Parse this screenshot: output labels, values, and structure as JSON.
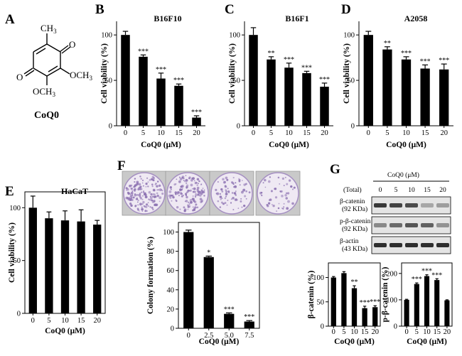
{
  "panel_labels": [
    "A",
    "B",
    "C",
    "D",
    "E",
    "F",
    "G"
  ],
  "structure": {
    "methyl": "CH",
    "methyl_sub": "3",
    "oc1": "OCH",
    "oc1_sub": "3",
    "oc2": "OCH",
    "oc2_sub": "3",
    "o_left": "O",
    "o_top": "O",
    "name": "CoQ0"
  },
  "chart_data": [
    {
      "id": "B",
      "type": "bar",
      "title": "B16F10",
      "categories": [
        "0",
        "5",
        "10",
        "15",
        "20"
      ],
      "values": [
        100,
        76,
        52,
        44,
        9
      ],
      "errors": [
        4,
        2,
        6,
        2,
        2
      ],
      "significance": [
        "",
        "***",
        "***",
        "***",
        "***"
      ],
      "ylabel": "Cell viability (%)",
      "xlabel": "CoQ0 (μM)",
      "ylim": [
        0,
        115
      ],
      "yticks": [
        "0",
        "50",
        "100"
      ]
    },
    {
      "id": "C",
      "type": "bar",
      "title": "B16F1",
      "categories": [
        "0",
        "5",
        "10",
        "15",
        "20"
      ],
      "values": [
        100,
        73,
        64,
        58,
        43
      ],
      "errors": [
        8,
        3,
        5,
        2,
        4
      ],
      "significance": [
        "",
        "**",
        "***",
        "***",
        "***"
      ],
      "ylabel": "Cell viability (%)",
      "xlabel": "CoQ0 (μM)",
      "ylim": [
        0,
        115
      ],
      "yticks": [
        "0",
        "50",
        "100"
      ]
    },
    {
      "id": "D",
      "type": "bar",
      "title": "A2058",
      "categories": [
        "0",
        "5",
        "10",
        "15",
        "20"
      ],
      "values": [
        100,
        84,
        73,
        63,
        62
      ],
      "errors": [
        4,
        3,
        3,
        4,
        6
      ],
      "significance": [
        "",
        "**",
        "***",
        "***",
        "***"
      ],
      "ylabel": "Cell viability (%)",
      "xlabel": "CoQ0 (μM)",
      "ylim": [
        0,
        115
      ],
      "yticks": [
        "0",
        "50",
        "100"
      ]
    },
    {
      "id": "E",
      "type": "bar",
      "title": "HaCaT",
      "categories": [
        "0",
        "5",
        "10",
        "15",
        "20"
      ],
      "values": [
        100,
        90,
        88,
        87,
        84
      ],
      "errors": [
        11,
        6,
        9,
        11,
        4
      ],
      "significance": [
        "",
        "",
        "",
        "",
        ""
      ],
      "ylabel": "Cell viability (%)",
      "xlabel": "CoQ0 (μM)",
      "ylim": [
        0,
        115
      ],
      "yticks": [
        "0",
        "50",
        "100"
      ]
    },
    {
      "id": "F",
      "type": "bar",
      "title": "",
      "categories": [
        "0",
        "2.5",
        "5.0",
        "7.5"
      ],
      "values": [
        100,
        74,
        15,
        7
      ],
      "errors": [
        2,
        1,
        1,
        1
      ],
      "significance": [
        "",
        "*",
        "***",
        "***"
      ],
      "ylabel": "Colony formation (%)",
      "xlabel": "CoQ0 (μM)",
      "ylim": [
        0,
        110
      ],
      "yticks": [
        "0",
        "20",
        "40",
        "60",
        "80",
        "100"
      ]
    },
    {
      "id": "G1",
      "type": "bar",
      "title": "",
      "categories": [
        "0",
        "5",
        "10",
        "15",
        "20"
      ],
      "values": [
        100,
        109,
        78,
        37,
        39
      ],
      "errors": [
        2,
        3,
        5,
        4,
        3
      ],
      "significance": [
        "",
        "",
        "**",
        "***",
        "***"
      ],
      "ylabel": "β-catenin (%)",
      "xlabel": "CoQ0 (μM)",
      "ylim": [
        0,
        130
      ],
      "yticks": [
        "0",
        "50",
        "100"
      ]
    },
    {
      "id": "G2",
      "type": "bar",
      "title": "",
      "categories": [
        "0",
        "5",
        "10",
        "15",
        "20"
      ],
      "values": [
        100,
        160,
        190,
        175,
        98
      ],
      "errors": [
        2,
        4,
        5,
        5,
        2
      ],
      "significance": [
        "",
        "***",
        "***",
        "***",
        ""
      ],
      "ylabel": "p-β-catenin (%)",
      "xlabel": "CoQ0 (μM)",
      "ylim": [
        0,
        240
      ],
      "yticks": [
        "0",
        "100",
        "200"
      ]
    }
  ],
  "blot": {
    "treatment_label": "CoQ0 (μM)",
    "total_label": "(Total)",
    "lanes": [
      "0",
      "5",
      "10",
      "15",
      "20"
    ],
    "rows": [
      {
        "name": "β-catenin",
        "size": "(92 KDa)",
        "intensity": [
          0.85,
          0.8,
          0.75,
          0.3,
          0.35
        ]
      },
      {
        "name": "p-β-catenin",
        "size": "(92 KDa)",
        "intensity": [
          0.45,
          0.6,
          0.7,
          0.65,
          0.4
        ]
      },
      {
        "name": "β-actin",
        "size": "(43 KDa)",
        "intensity": [
          0.9,
          0.9,
          0.9,
          0.9,
          0.9
        ]
      }
    ]
  },
  "colors": {
    "bar": "#000000",
    "plate": "#efe9f3",
    "colony": "#8a6fb0",
    "blot_bg": "#e4e4e4",
    "band": "#1a1a1a"
  }
}
